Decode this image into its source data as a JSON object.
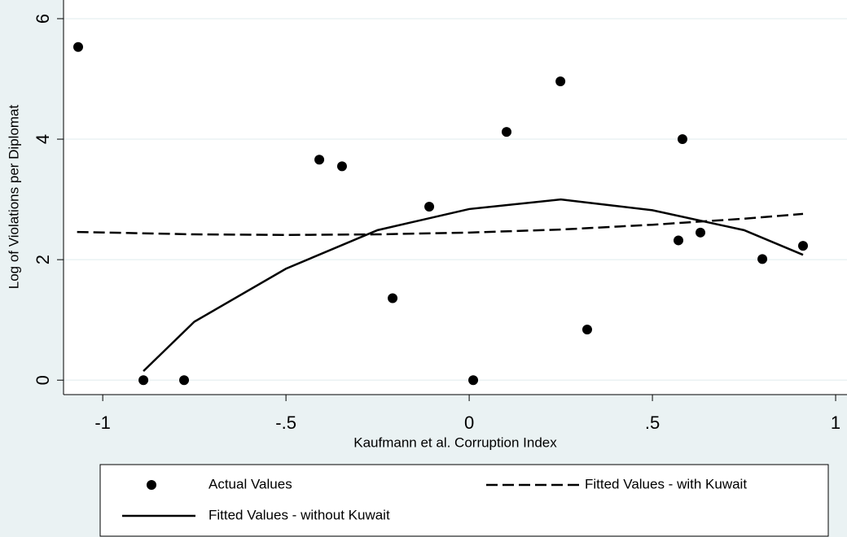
{
  "chart_data": {
    "type": "scatter",
    "x_label": "Kaufmann et al. Corruption Index",
    "y_label": "Log of Violations per Diplomat",
    "xlim": [
      -1.107,
      1.031
    ],
    "ylim": [
      -0.24,
      6.31
    ],
    "xticks": [
      -1,
      {
        "value": -0.5,
        "label": "-.5"
      },
      0,
      {
        "value": 0.5,
        "label": ".5"
      },
      1
    ],
    "yticks": [
      0,
      2,
      4,
      6
    ],
    "grid": true,
    "series": [
      {
        "name": "Actual Values",
        "kind": "points",
        "color": "#000000",
        "x": [
          -1.067,
          -0.889,
          -0.778,
          -0.409,
          -0.347,
          -0.209,
          -0.109,
          0.011,
          0.102,
          0.249,
          0.322,
          0.571,
          0.582,
          0.631,
          0.8,
          0.911
        ],
        "values": [
          5.53,
          0,
          0,
          3.66,
          3.55,
          1.36,
          2.88,
          0,
          4.12,
          4.96,
          0.84,
          2.32,
          4.0,
          2.45,
          2.01,
          2.23
        ]
      },
      {
        "name": "Fitted Values - with Kuwait",
        "kind": "dashed",
        "color": "#000000",
        "x": [
          -1.07,
          -0.75,
          -0.5,
          -0.25,
          0,
          0.25,
          0.5,
          0.75,
          0.911
        ],
        "values": [
          2.46,
          2.42,
          2.41,
          2.42,
          2.45,
          2.5,
          2.58,
          2.68,
          2.76
        ]
      },
      {
        "name": "Fitted Values - without Kuwait",
        "kind": "solid",
        "color": "#000000",
        "x": [
          -0.889,
          -0.75,
          -0.5,
          -0.25,
          0,
          0.25,
          0.5,
          0.75,
          0.911
        ],
        "values": [
          0.15,
          0.97,
          1.85,
          2.49,
          2.84,
          3.0,
          2.82,
          2.49,
          2.08
        ]
      }
    ]
  }
}
